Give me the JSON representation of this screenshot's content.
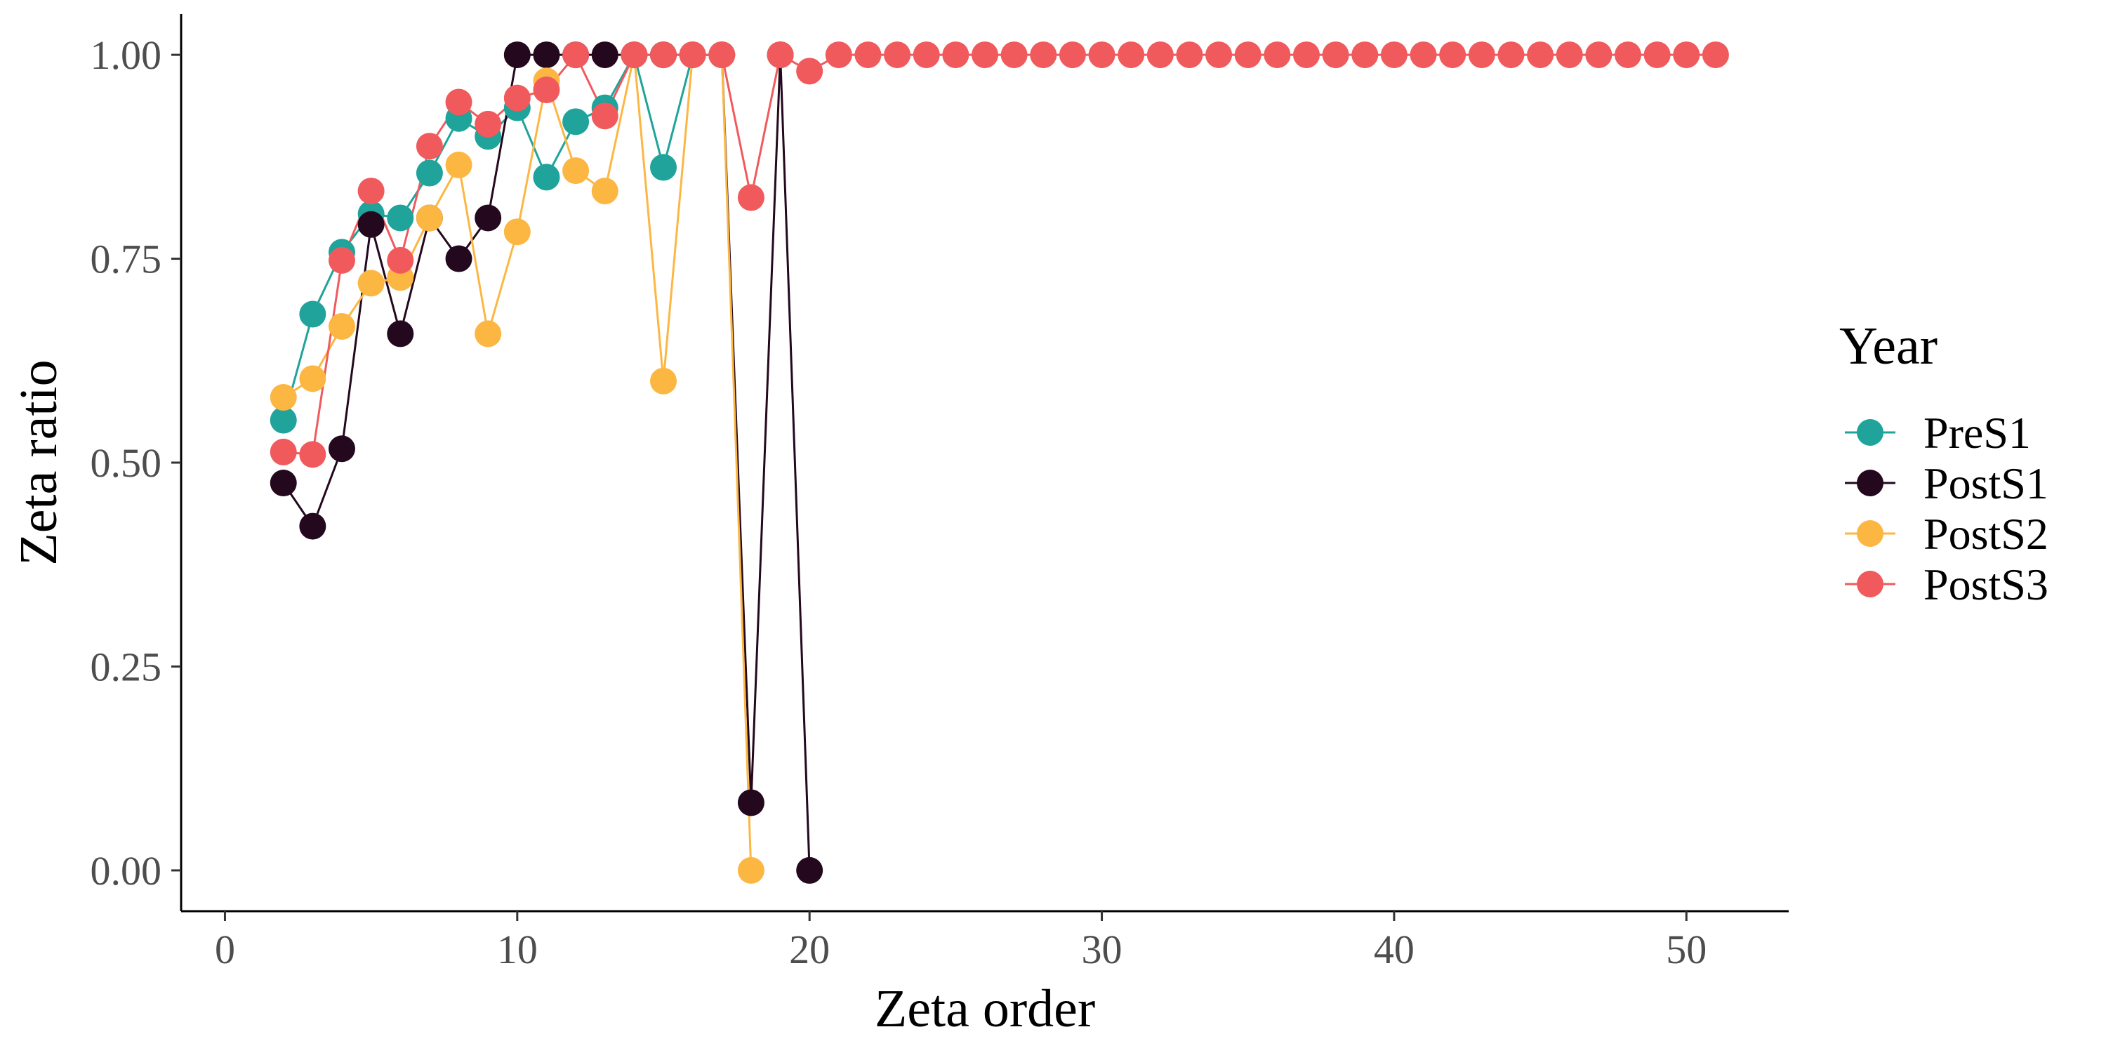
{
  "chart_data": {
    "type": "line",
    "xlabel": "Zeta order",
    "ylabel": "Zeta ratio",
    "xlim": [
      -1.5,
      53.5
    ],
    "ylim": [
      -0.05,
      1.05
    ],
    "x_ticks": [
      0,
      10,
      20,
      30,
      40,
      50
    ],
    "x_tick_labels": [
      "0",
      "10",
      "20",
      "30",
      "40",
      "50"
    ],
    "y_ticks": [
      0,
      0.25,
      0.5,
      0.75,
      1.0
    ],
    "y_tick_labels": [
      "0.00",
      "0.25",
      "0.50",
      "0.75",
      "1.00"
    ],
    "grid": false,
    "legend": {
      "title": "Year",
      "position": "right"
    },
    "series": [
      {
        "name": "PreS1",
        "color": "#1FA39A",
        "x": [
          2,
          3,
          4,
          5,
          6,
          7,
          8,
          9,
          10,
          11,
          12,
          13,
          14,
          15,
          16,
          17
        ],
        "y": [
          0.552,
          0.682,
          0.758,
          0.805,
          0.8,
          0.855,
          0.922,
          0.9,
          0.935,
          0.85,
          0.918,
          0.935,
          1.0,
          0.862,
          1.0,
          1.0
        ]
      },
      {
        "name": "PostS1",
        "color": "#23081E",
        "x": [
          2,
          3,
          4,
          5,
          6,
          7,
          8,
          9,
          10,
          11,
          12,
          13,
          14,
          15,
          16,
          17,
          18,
          19,
          20
        ],
        "y": [
          0.475,
          0.422,
          0.517,
          0.792,
          0.658,
          0.8,
          0.75,
          0.8,
          1.0,
          1.0,
          1.0,
          1.0,
          1.0,
          1.0,
          1.0,
          1.0,
          0.083,
          1.0,
          0.0
        ]
      },
      {
        "name": "PostS2",
        "color": "#FCB743",
        "x": [
          2,
          3,
          4,
          5,
          6,
          7,
          8,
          9,
          10,
          11,
          12,
          13,
          14,
          15,
          16,
          17,
          18
        ],
        "y": [
          0.58,
          0.603,
          0.667,
          0.72,
          0.727,
          0.8,
          0.865,
          0.658,
          0.783,
          0.968,
          0.858,
          0.833,
          1.0,
          0.6,
          1.0,
          1.0,
          0.0
        ]
      },
      {
        "name": "PostS3",
        "color": "#F05A5C",
        "x": [
          2,
          3,
          4,
          5,
          6,
          7,
          8,
          9,
          10,
          11,
          12,
          13,
          14,
          15,
          16,
          17,
          18,
          19,
          20,
          21,
          22,
          23,
          24,
          25,
          26,
          27,
          28,
          29,
          30,
          31,
          32,
          33,
          34,
          35,
          36,
          37,
          38,
          39,
          40,
          41,
          42,
          43,
          44,
          45,
          46,
          47,
          48,
          49,
          50,
          51
        ],
        "y": [
          0.513,
          0.51,
          0.748,
          0.833,
          0.748,
          0.888,
          0.942,
          0.915,
          0.947,
          0.957,
          1.0,
          0.925,
          1.0,
          1.0,
          1.0,
          1.0,
          0.825,
          1.0,
          0.98,
          1.0,
          1.0,
          1.0,
          1.0,
          1.0,
          1.0,
          1.0,
          1.0,
          1.0,
          1.0,
          1.0,
          1.0,
          1.0,
          1.0,
          1.0,
          1.0,
          1.0,
          1.0,
          1.0,
          1.0,
          1.0,
          1.0,
          1.0,
          1.0,
          1.0,
          1.0,
          1.0,
          1.0,
          1.0,
          1.0,
          1.0
        ]
      }
    ]
  }
}
